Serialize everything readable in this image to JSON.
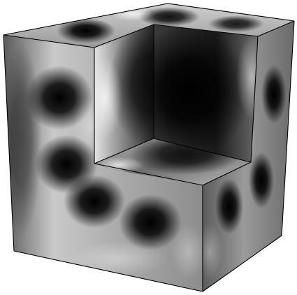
{
  "scene": {
    "subject": "notched-cube",
    "background_color": "#ffffff",
    "shade_light": "#dcdcdc",
    "shade_mid": "#7a7a7a",
    "shade_dark": "#000000",
    "edge_color": "#000000"
  }
}
